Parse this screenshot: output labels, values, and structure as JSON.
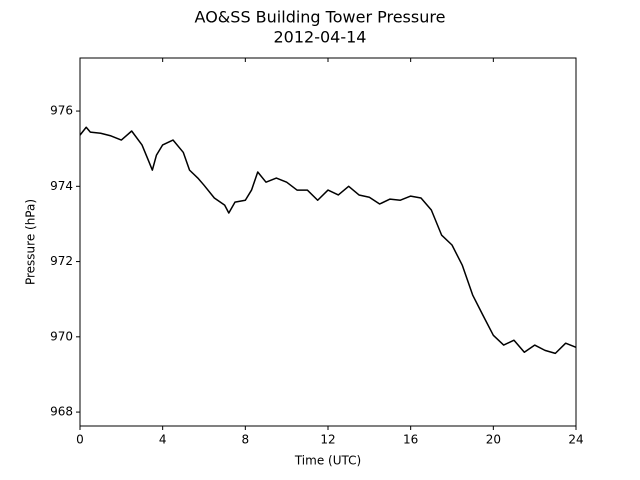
{
  "chart_data": {
    "type": "line",
    "title": "AO&SS Building Tower Pressure",
    "subtitle": "2012-04-14",
    "x_label": "Time (UTC)",
    "y_label": "Pressure (hPa)",
    "x": [
      0,
      0.3,
      0.5,
      1,
      1.5,
      2,
      2.5,
      3,
      3.3,
      3.5,
      3.7,
      4,
      4.5,
      5,
      5.3,
      5.7,
      6,
      6.5,
      7,
      7.2,
      7.5,
      8,
      8.3,
      8.6,
      9,
      9.5,
      10,
      10.5,
      11,
      11.5,
      12,
      12.5,
      13,
      13.5,
      14,
      14.5,
      15,
      15.5,
      16,
      16.5,
      17,
      17.5,
      18,
      18.5,
      19,
      19.5,
      20,
      20.5,
      21,
      21.5,
      22,
      22.5,
      23,
      23.5,
      24
    ],
    "series": [
      {
        "color": "#000000",
        "values": [
          975.36,
          975.57,
          975.44,
          975.41,
          975.34,
          975.23,
          975.47,
          975.1,
          974.7,
          974.43,
          974.83,
          975.1,
          975.23,
          974.9,
          974.43,
          974.22,
          974.03,
          973.69,
          973.5,
          973.29,
          973.58,
          973.63,
          973.9,
          974.38,
          974.11,
          974.22,
          974.11,
          973.9,
          973.9,
          973.63,
          973.9,
          973.77,
          974.0,
          973.77,
          973.71,
          973.53,
          973.66,
          973.63,
          973.74,
          973.69,
          973.37,
          972.7,
          972.44,
          971.9,
          971.11,
          970.57,
          970.04,
          969.78,
          969.91,
          969.59,
          969.78,
          969.64,
          969.56,
          969.83,
          969.72
        ]
      }
    ],
    "xlim": [
      0,
      24
    ],
    "xticks": [
      0,
      4,
      8,
      12,
      16,
      20,
      24
    ],
    "ylim": [
      967.63,
      977.41
    ],
    "yticks": [
      968,
      970,
      972,
      974,
      976
    ],
    "grid": false
  }
}
